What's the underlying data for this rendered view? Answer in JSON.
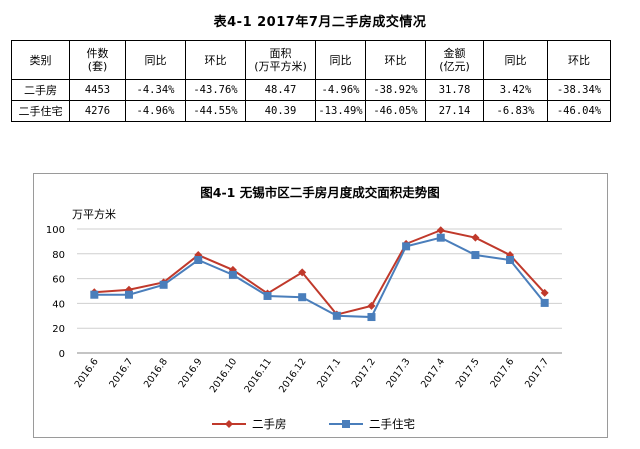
{
  "table": {
    "title": "表4-1  2017年7月二手房成交情况",
    "header": {
      "category": "类别",
      "count_line1": "件数",
      "count_line2": "(套)",
      "yoy1": "同比",
      "mom1": "环比",
      "area_line1": "面积",
      "area_line2": "(万平方米)",
      "yoy2": "同比",
      "mom2": "环比",
      "amount_line1": "金额",
      "amount_line2": "(亿元)",
      "yoy3": "同比",
      "mom3": "环比"
    },
    "rows": [
      [
        "二手房",
        "4453",
        "-4.34%",
        "-43.76%",
        "48.47",
        "-4.96%",
        "-38.92%",
        "31.78",
        "3.42%",
        "-38.34%"
      ],
      [
        "二手住宅",
        "4276",
        "-4.96%",
        "-44.55%",
        "40.39",
        "-13.49%",
        "-46.05%",
        "27.14",
        "-6.83%",
        "-46.04%"
      ]
    ]
  },
  "chart_data": {
    "type": "line",
    "title": "图4-1  无锡市区二手房月度成交面积走势图",
    "ylabel": "万平方米",
    "xlabel": "",
    "ylim": [
      0,
      100
    ],
    "yticks": [
      "0",
      "20",
      "40",
      "60",
      "80",
      "100"
    ],
    "grid": true,
    "legend_position": "bottom",
    "categories": [
      "2016.6",
      "2016.7",
      "2016.8",
      "2016.9",
      "2016.10",
      "2016.11",
      "2016.12",
      "2017.1",
      "2017.2",
      "2017.3",
      "2017.4",
      "2017.5",
      "2017.6",
      "2017.7"
    ],
    "series": [
      {
        "name": "二手房",
        "color": "#c0392b",
        "marker": "diamond",
        "values": [
          49,
          51,
          57,
          79,
          67,
          48,
          65,
          31,
          38,
          88,
          99,
          93,
          79,
          48.47
        ]
      },
      {
        "name": "二手住宅",
        "color": "#4a7ebb",
        "marker": "square",
        "values": [
          47,
          47,
          55,
          75,
          63,
          46,
          45,
          30,
          29,
          86,
          93,
          79,
          75,
          40.39
        ]
      }
    ]
  }
}
